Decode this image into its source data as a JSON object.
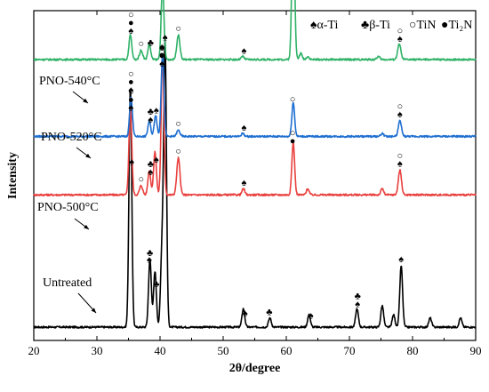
{
  "chart_data": {
    "type": "line",
    "xlabel": "2θ/degree",
    "ylabel": "Intensity",
    "xlim": [
      20,
      90
    ],
    "xticks": [
      "20",
      "30",
      "40",
      "50",
      "60",
      "70",
      "80",
      "90"
    ],
    "grid": false,
    "legend": {
      "placement": "top-right",
      "entries": [
        {
          "symbol": "♠",
          "label": "α-Ti"
        },
        {
          "symbol": "♣",
          "label": "β-Ti"
        },
        {
          "symbol": "○",
          "label": "TiN"
        },
        {
          "symbol": "●",
          "label": "Ti₂N"
        }
      ]
    },
    "series": [
      {
        "name": "Untreated",
        "color": "#000000",
        "baseline": 0.0,
        "peaks": [
          {
            "x": 35.3,
            "h": 0.78,
            "w": 0.22
          },
          {
            "x": 38.4,
            "h": 0.22,
            "w": 0.22
          },
          {
            "x": 39.2,
            "h": 0.18,
            "w": 0.22
          },
          {
            "x": 40.3,
            "h": 0.24,
            "w": 0.22
          },
          {
            "x": 40.8,
            "h": 0.92,
            "w": 0.22
          },
          {
            "x": 53.2,
            "h": 0.06,
            "w": 0.22
          },
          {
            "x": 57.4,
            "h": 0.03,
            "w": 0.22
          },
          {
            "x": 63.6,
            "h": 0.04,
            "w": 0.22
          },
          {
            "x": 71.2,
            "h": 0.06,
            "w": 0.22
          },
          {
            "x": 75.2,
            "h": 0.07,
            "w": 0.22
          },
          {
            "x": 77.0,
            "h": 0.04,
            "w": 0.22
          },
          {
            "x": 78.2,
            "h": 0.2,
            "w": 0.22
          },
          {
            "x": 82.8,
            "h": 0.03,
            "w": 0.22
          },
          {
            "x": 87.6,
            "h": 0.03,
            "w": 0.22
          }
        ],
        "markers": [
          {
            "x": 35.5,
            "symbols": [
              "♠"
            ]
          },
          {
            "x": 38.4,
            "symbols": [
              "♣"
            ]
          },
          {
            "x": 38.3,
            "symbols": [
              "♠"
            ]
          },
          {
            "x": 39.4,
            "symbols": [
              "♣"
            ]
          },
          {
            "x": 40.8,
            "symbols": [
              "♠"
            ]
          },
          {
            "x": 53.5,
            "symbols": [
              "♠"
            ]
          },
          {
            "x": 57.3,
            "symbols": [
              "♣"
            ]
          },
          {
            "x": 63.9,
            "symbols": [
              "♠"
            ]
          },
          {
            "x": 71.3,
            "symbols": [
              "♣",
              "♠"
            ]
          },
          {
            "x": 78.2,
            "symbols": [
              "♠"
            ]
          }
        ]
      },
      {
        "name": "PNO-500°C",
        "color": "#e8403e",
        "baseline": 0.43,
        "peaks": [
          {
            "x": 35.3,
            "h": 0.29,
            "w": 0.22
          },
          {
            "x": 37.0,
            "h": 0.03,
            "w": 0.25
          },
          {
            "x": 38.3,
            "h": 0.08,
            "w": 0.22
          },
          {
            "x": 39.2,
            "h": 0.14,
            "w": 0.22
          },
          {
            "x": 40.4,
            "h": 0.45,
            "w": 0.22
          },
          {
            "x": 42.9,
            "h": 0.12,
            "w": 0.25
          },
          {
            "x": 53.2,
            "h": 0.02,
            "w": 0.22
          },
          {
            "x": 61.1,
            "h": 0.17,
            "w": 0.22
          },
          {
            "x": 63.4,
            "h": 0.02,
            "w": 0.22
          },
          {
            "x": 75.2,
            "h": 0.02,
            "w": 0.22
          },
          {
            "x": 78.0,
            "h": 0.08,
            "w": 0.25
          }
        ],
        "markers": [
          {
            "x": 35.4,
            "symbols": [
              "○",
              "●",
              "♠"
            ]
          },
          {
            "x": 37.0,
            "symbols": [
              "○"
            ]
          },
          {
            "x": 38.5,
            "symbols": [
              "♣",
              "♠"
            ]
          },
          {
            "x": 39.4,
            "symbols": [
              "♠"
            ]
          },
          {
            "x": 40.3,
            "symbols": [
              "♠",
              "●",
              "♠"
            ]
          },
          {
            "x": 42.9,
            "symbols": [
              "○"
            ]
          },
          {
            "x": 53.3,
            "symbols": [
              "♠"
            ]
          },
          {
            "x": 61.0,
            "symbols": [
              "○",
              "●"
            ]
          },
          {
            "x": 78.0,
            "symbols": [
              "○",
              "♠"
            ]
          }
        ]
      },
      {
        "name": "PNO-520°C",
        "color": "#1f6fd1",
        "baseline": 0.62,
        "peaks": [
          {
            "x": 35.4,
            "h": 0.13,
            "w": 0.22
          },
          {
            "x": 38.3,
            "h": 0.05,
            "w": 0.22
          },
          {
            "x": 39.3,
            "h": 0.07,
            "w": 0.22
          },
          {
            "x": 40.4,
            "h": 0.27,
            "w": 0.22
          },
          {
            "x": 42.9,
            "h": 0.02,
            "w": 0.25
          },
          {
            "x": 53.1,
            "h": 0.01,
            "w": 0.22
          },
          {
            "x": 61.1,
            "h": 0.11,
            "w": 0.22
          },
          {
            "x": 75.2,
            "h": 0.01,
            "w": 0.22
          },
          {
            "x": 78.0,
            "h": 0.05,
            "w": 0.25
          }
        ],
        "markers": [
          {
            "x": 35.4,
            "symbols": [
              "○",
              "●",
              "♠"
            ]
          },
          {
            "x": 38.5,
            "symbols": [
              "♣",
              "♠"
            ]
          },
          {
            "x": 39.4,
            "symbols": [
              "♠"
            ]
          },
          {
            "x": 40.3,
            "symbols": [
              "♠",
              "●"
            ]
          },
          {
            "x": 42.9,
            "symbols": [
              "○"
            ]
          },
          {
            "x": 53.3,
            "symbols": [
              "♠"
            ]
          },
          {
            "x": 61.0,
            "symbols": [
              "○"
            ]
          },
          {
            "x": 78.0,
            "symbols": [
              "○",
              "♠"
            ]
          }
        ]
      },
      {
        "name": "PNO-540°C",
        "color": "#2fb267",
        "baseline": 0.87,
        "peaks": [
          {
            "x": 35.3,
            "h": 0.08,
            "w": 0.22
          },
          {
            "x": 37.0,
            "h": 0.03,
            "w": 0.25
          },
          {
            "x": 38.3,
            "h": 0.05,
            "w": 0.22
          },
          {
            "x": 40.4,
            "h": 0.24,
            "w": 0.22
          },
          {
            "x": 42.9,
            "h": 0.08,
            "w": 0.25
          },
          {
            "x": 53.1,
            "h": 0.01,
            "w": 0.22
          },
          {
            "x": 61.1,
            "h": 0.48,
            "w": 0.22
          },
          {
            "x": 62.3,
            "h": 0.02,
            "w": 0.22
          },
          {
            "x": 63.4,
            "h": 0.01,
            "w": 0.22
          },
          {
            "x": 74.6,
            "h": 0.01,
            "w": 0.22
          },
          {
            "x": 77.9,
            "h": 0.05,
            "w": 0.25
          }
        ],
        "markers": [
          {
            "x": 35.4,
            "symbols": [
              "○",
              "●",
              "♠"
            ]
          },
          {
            "x": 37.0,
            "symbols": [
              "○"
            ]
          },
          {
            "x": 38.5,
            "symbols": [
              "♣"
            ]
          },
          {
            "x": 40.3,
            "symbols": [
              "♠",
              "●"
            ]
          },
          {
            "x": 42.9,
            "symbols": [
              "○"
            ]
          },
          {
            "x": 53.3,
            "symbols": [
              "♠"
            ]
          },
          {
            "x": 61.0,
            "symbols": [
              "○",
              "●"
            ]
          },
          {
            "x": 78.0,
            "symbols": [
              "○",
              "♠"
            ]
          }
        ]
      }
    ]
  }
}
